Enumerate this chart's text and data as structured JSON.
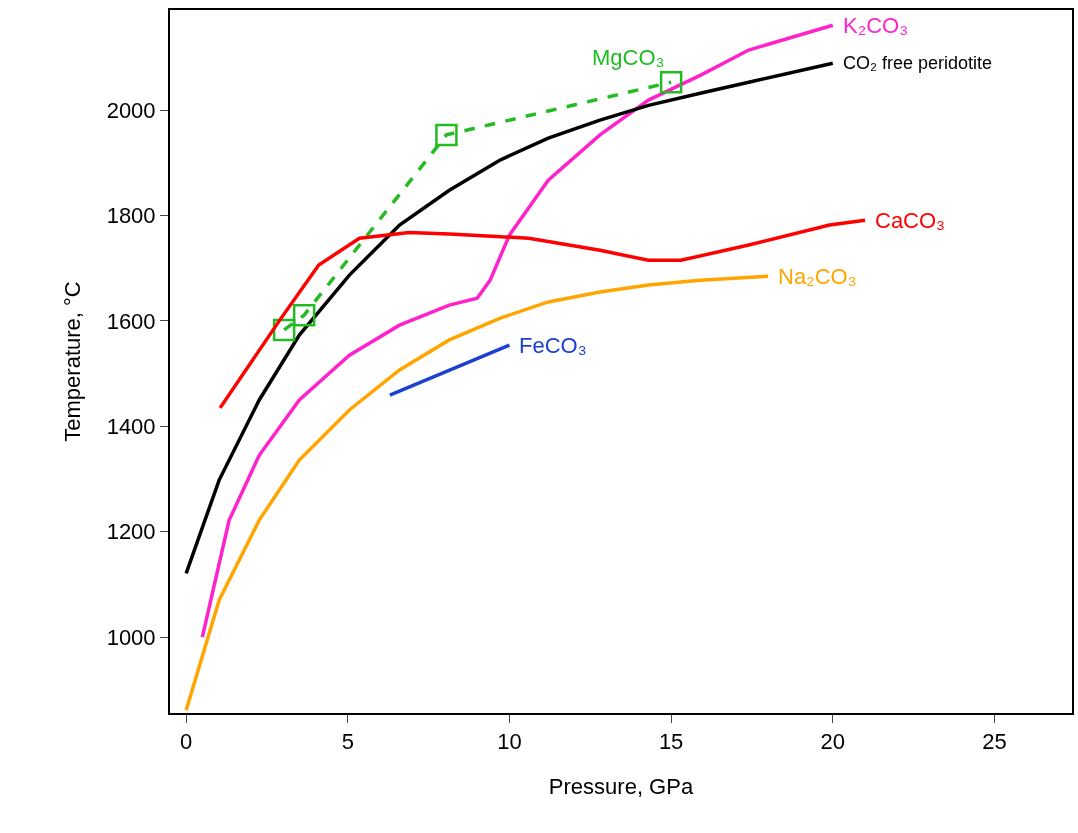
{
  "chart_data": {
    "type": "line",
    "xlabel": "Pressure, GPa",
    "ylabel": "Temperature, °C",
    "xlim": [
      -0.5,
      27.4
    ],
    "ylim": [
      856,
      2190
    ],
    "xticks": [
      0,
      5,
      10,
      15,
      20,
      25
    ],
    "yticks": [
      1000,
      1200,
      1400,
      1600,
      1800,
      2000
    ],
    "grid": false,
    "legend": false,
    "series": [
      {
        "name": "K₂CO₃",
        "color": "#ff22cc",
        "x": [
          0.5,
          1.33,
          2.26,
          3.5,
          5.05,
          6.6,
          8.14,
          9,
          9.4,
          10,
          11.2,
          12.8,
          14.3,
          15.9,
          17.4,
          20
        ],
        "values": [
          1000,
          1222,
          1345,
          1450,
          1535,
          1592,
          1630,
          1643,
          1677,
          1763,
          1867,
          1953,
          2019,
          2066,
          2114,
          2161
        ]
      },
      {
        "name": "CO₂ free peridotite",
        "color": "#000000",
        "x": [
          0,
          1.02,
          2.26,
          3.5,
          5.05,
          6.6,
          8.14,
          9.7,
          11.2,
          12.8,
          14.3,
          15.9,
          17.4,
          20
        ],
        "values": [
          1121,
          1298,
          1450,
          1573,
          1687,
          1782,
          1848,
          1905,
          1947,
          1981,
          2009,
          2032,
          2053,
          2089
        ]
      },
      {
        "name": "MgCO₃",
        "color": "#22bb22",
        "type": "line",
        "marker": "square",
        "line_style": "dashed",
        "x": [
          3.03,
          3.65,
          8.05,
          15
        ],
        "values": [
          1583,
          1611,
          1953,
          2053
        ]
      },
      {
        "name": "CaCO₃",
        "color": "#ff0000",
        "x": [
          1.05,
          2.9,
          4.1,
          5.36,
          6.9,
          8.14,
          10.6,
          12.8,
          14.3,
          15.3,
          17.4,
          19.9,
          21
        ],
        "values": [
          1435,
          1602,
          1706,
          1757,
          1768,
          1765,
          1757,
          1734,
          1715,
          1715,
          1744,
          1782,
          1791
        ]
      },
      {
        "name": "Na₂CO₃",
        "color": "#ffa500",
        "x": [
          0,
          1.02,
          2.26,
          3.5,
          5.05,
          6.6,
          8.14,
          9.7,
          11.2,
          12.8,
          14.3,
          15.9,
          18
        ],
        "values": [
          861,
          1070,
          1222,
          1336,
          1431,
          1507,
          1564,
          1605,
          1636,
          1655,
          1668,
          1677,
          1685
        ]
      },
      {
        "name": "FeCO₃",
        "color": "#1a3fd1",
        "x": [
          6.3,
          10
        ],
        "values": [
          1459,
          1554
        ]
      }
    ]
  }
}
